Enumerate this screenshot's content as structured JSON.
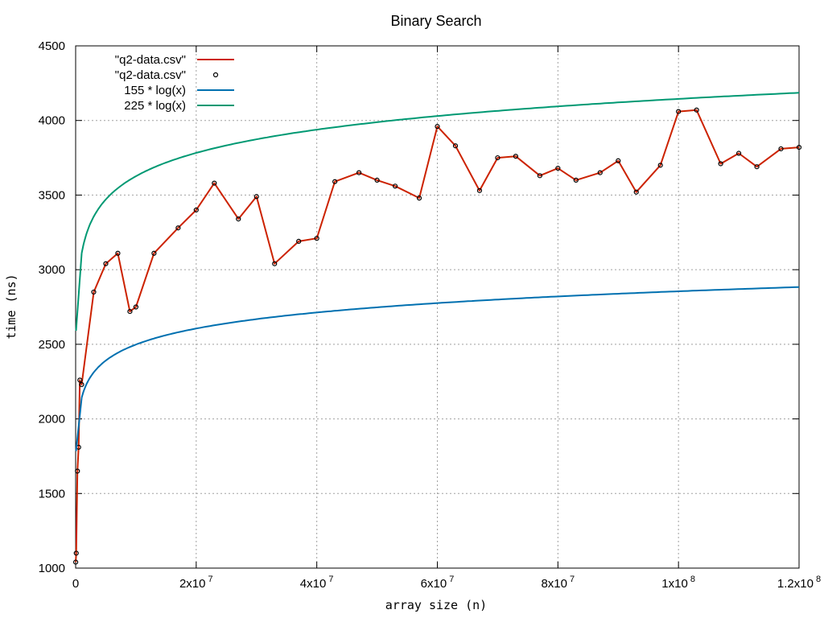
{
  "chart_data": {
    "type": "line",
    "title": "Binary Search",
    "xlabel": "array size (n)",
    "ylabel": "time (ns)",
    "xlim": [
      0,
      120000000
    ],
    "ylim": [
      1000,
      4500
    ],
    "grid": true,
    "legend_position": "top-left",
    "x_ticks": [
      {
        "value": 0,
        "base": "0",
        "exp": ""
      },
      {
        "value": 20000000,
        "base": "2x10",
        "exp": "7"
      },
      {
        "value": 40000000,
        "base": "4x10",
        "exp": "7"
      },
      {
        "value": 60000000,
        "base": "6x10",
        "exp": "7"
      },
      {
        "value": 80000000,
        "base": "8x10",
        "exp": "7"
      },
      {
        "value": 100000000,
        "base": "1x10",
        "exp": "8"
      },
      {
        "value": 120000000,
        "base": "1.2x10",
        "exp": "8"
      }
    ],
    "y_ticks": [
      1000,
      1500,
      2000,
      2500,
      3000,
      3500,
      4000,
      4500
    ],
    "colors": {
      "data": "#cc2200",
      "points": "#000000",
      "f155": "#0070b0",
      "f225": "#009973"
    },
    "series": [
      {
        "name": "\"q2-data.csv\"",
        "style": "line",
        "x": [
          10000,
          100000,
          300000,
          500000,
          700000,
          1000000,
          3000000,
          5000000,
          7000000,
          9000000,
          10000000,
          13000000,
          17000000,
          20000000,
          23000000,
          27000000,
          30000000,
          33000000,
          37000000,
          40000000,
          43000000,
          47000000,
          50000000,
          53000000,
          57000000,
          60000000,
          63000000,
          67000000,
          70000000,
          73000000,
          77000000,
          80000000,
          83000000,
          87000000,
          90000000,
          93000000,
          97000000,
          100000000,
          103000000,
          107000000,
          110000000,
          113000000,
          117000000,
          120000000
        ],
        "y": [
          1040,
          1100,
          1650,
          1810,
          2260,
          2230,
          2850,
          3040,
          3110,
          2720,
          2750,
          3110,
          3280,
          3400,
          3580,
          3340,
          3490,
          3040,
          3190,
          3210,
          3590,
          3650,
          3600,
          3560,
          3480,
          3960,
          3830,
          3530,
          3750,
          3760,
          3630,
          3680,
          3600,
          3650,
          3730,
          3520,
          3700,
          4060,
          4070,
          3710,
          3780,
          3690,
          3810,
          3820
        ]
      },
      {
        "name": "\"q2-data.csv\"",
        "style": "points",
        "x": [
          10000,
          100000,
          300000,
          500000,
          700000,
          1000000,
          3000000,
          5000000,
          7000000,
          9000000,
          10000000,
          13000000,
          17000000,
          20000000,
          23000000,
          27000000,
          30000000,
          33000000,
          37000000,
          40000000,
          43000000,
          47000000,
          50000000,
          53000000,
          57000000,
          60000000,
          63000000,
          67000000,
          70000000,
          73000000,
          77000000,
          80000000,
          83000000,
          87000000,
          90000000,
          93000000,
          97000000,
          100000000,
          103000000,
          107000000,
          110000000,
          113000000,
          117000000,
          120000000
        ],
        "y": [
          1040,
          1100,
          1650,
          1810,
          2260,
          2230,
          2850,
          3040,
          3110,
          2720,
          2750,
          3110,
          3280,
          3400,
          3580,
          3340,
          3490,
          3040,
          3190,
          3210,
          3590,
          3650,
          3600,
          3560,
          3480,
          3960,
          3830,
          3530,
          3750,
          3760,
          3630,
          3680,
          3600,
          3650,
          3730,
          3520,
          3700,
          4060,
          4070,
          3710,
          3780,
          3690,
          3810,
          3820
        ]
      },
      {
        "name": "155 * log(x)",
        "style": "function",
        "coef": 155
      },
      {
        "name": "225 * log(x)",
        "style": "function",
        "coef": 225
      }
    ]
  }
}
